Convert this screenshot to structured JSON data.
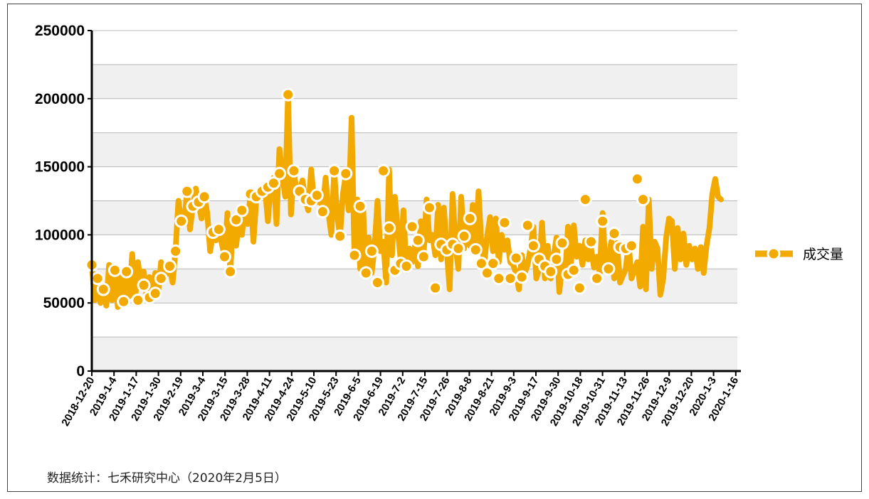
{
  "source_note": "数据统计：七禾研究中心（2020年2月5日）",
  "chart_data": {
    "type": "line",
    "title": "",
    "xlabel": "",
    "ylabel": "",
    "ylim": [
      0,
      250000
    ],
    "yticks": [
      0,
      50000,
      100000,
      150000,
      200000,
      250000
    ],
    "grid": true,
    "legend_position": "right",
    "series_color": "#f2a900",
    "xtick_labels": [
      "2018-12-20",
      "2019-1-4",
      "2019-1-17",
      "2019-1-30",
      "2019-2-19",
      "2019-3-4",
      "2019-3-15",
      "2019-3-28",
      "2019-4-11",
      "2019-4-24",
      "2019-5-10",
      "2019-5-23",
      "2019-6-5",
      "2019-6-19",
      "2019-7-2",
      "2019-7-15",
      "2019-7-26",
      "2019-8-8",
      "2019-8-21",
      "2019-9-3",
      "2019-9-17",
      "2019-9-30",
      "2019-10-18",
      "2019-10-31",
      "2019-11-13",
      "2019-11-26",
      "2019-12-9",
      "2019-12-20",
      "2020-1-3",
      "2020-1-16"
    ],
    "series": [
      {
        "name": "成交量",
        "values": [
          78000,
          52000,
          68000,
          50000,
          60000,
          48000,
          78000,
          52000,
          74000,
          47000,
          71000,
          51000,
          73000,
          55000,
          86000,
          52000,
          80000,
          63000,
          73000,
          54000,
          69000,
          57000,
          72000,
          58000,
          80000,
          68000,
          72000,
          77000,
          65000,
          88000,
          125000,
          110000,
          108000,
          132000,
          104000,
          121000,
          134000,
          124000,
          112000,
          128000,
          116000,
          88000,
          102000,
          96000,
          104000,
          94000,
          84000,
          116000,
          73000,
          112000,
          92000,
          110000,
          100000,
          120000,
          108000,
          130000,
          95000,
          126000,
          128000,
          132000,
          135000,
          110000,
          138000,
          142000,
          108000,
          163000,
          145000,
          128000,
          203000,
          115000,
          147000,
          130000,
          132000,
          140000,
          126000,
          118000,
          148000,
          125000,
          124000,
          130000,
          118000,
          142000,
          116000,
          100000,
          147000,
          115000,
          99000,
          130000,
          144000,
          118000,
          186000,
          85000,
          126000,
          75000,
          120000,
          70000,
          98000,
          72000,
          92000,
          125000,
          88000,
          95000,
          65000,
          148000,
          85000,
          128000,
          104000,
          82000,
          118000,
          74000,
          90000,
          80000,
          92000,
          77000,
          110000,
          86000,
          126000,
          96000,
          100000,
          85000,
          122000,
          82000,
          120000,
          88000,
          60000,
          130000,
          93000,
          75000,
          128000,
          90000,
          110000,
          92000,
          122000,
          90000,
          132000,
          92000,
          80000,
          99000,
          113000,
          88000,
          112000,
          80000,
          100000,
          89000,
          96000,
          80000,
          78000,
          72000,
          60000,
          85000,
          72000,
          78000,
          90000,
          106000,
          68000,
          75000,
          109000,
          68000,
          92000,
          68000,
          84000,
          98000,
          58000,
          80000,
          69000,
          106000,
          78000,
          107000,
          84000,
          92000,
          78000,
          96000,
          82000,
          90000,
          76000,
          84000,
          72000,
          116000,
          75000,
          82000,
          95000,
          68000,
          94000,
          65000,
          70000,
          75000,
          94000,
          68000,
          74000,
          80000,
          62000,
          106000,
          60000,
          126000,
          75000,
          95000,
          90000,
          56000,
          68000,
          98000,
          112000,
          110000,
          75000,
          105000,
          82000,
          101000,
          78000,
          92000,
          82000,
          90000,
          75000,
          91000,
          72000,
          92000,
          105000,
          130000,
          141000,
          128000,
          126000
        ]
      }
    ],
    "markers": [
      [
        0,
        78000
      ],
      [
        2,
        68000
      ],
      [
        4,
        60000
      ],
      [
        8,
        74000
      ],
      [
        11,
        51000
      ],
      [
        12,
        73000
      ],
      [
        16,
        52000
      ],
      [
        18,
        63000
      ],
      [
        20,
        54000
      ],
      [
        22,
        57000
      ],
      [
        24,
        68000
      ],
      [
        27,
        77000
      ],
      [
        29,
        88000
      ],
      [
        31,
        110000
      ],
      [
        33,
        132000
      ],
      [
        35,
        121000
      ],
      [
        37,
        124000
      ],
      [
        39,
        128000
      ],
      [
        42,
        102000
      ],
      [
        44,
        104000
      ],
      [
        46,
        84000
      ],
      [
        48,
        73000
      ],
      [
        50,
        111000
      ],
      [
        52,
        118000
      ],
      [
        55,
        130000
      ],
      [
        57,
        128000
      ],
      [
        59,
        132000
      ],
      [
        61,
        135000
      ],
      [
        63,
        138000
      ],
      [
        65,
        145000
      ],
      [
        68,
        203000
      ],
      [
        70,
        147000
      ],
      [
        72,
        132000
      ],
      [
        74,
        126000
      ],
      [
        76,
        125000
      ],
      [
        78,
        129000
      ],
      [
        80,
        117000
      ],
      [
        84,
        147000
      ],
      [
        86,
        99000
      ],
      [
        88,
        145000
      ],
      [
        91,
        85000
      ],
      [
        93,
        121000
      ],
      [
        95,
        72000
      ],
      [
        97,
        88000
      ],
      [
        99,
        65000
      ],
      [
        101,
        147000
      ],
      [
        103,
        105000
      ],
      [
        105,
        74000
      ],
      [
        107,
        79000
      ],
      [
        109,
        77000
      ],
      [
        111,
        106000
      ],
      [
        113,
        96000
      ],
      [
        115,
        84000
      ],
      [
        117,
        120000
      ],
      [
        119,
        61000
      ],
      [
        121,
        93000
      ],
      [
        123,
        89000
      ],
      [
        125,
        93000
      ],
      [
        127,
        90000
      ],
      [
        129,
        99000
      ],
      [
        131,
        112000
      ],
      [
        133,
        89000
      ],
      [
        135,
        79000
      ],
      [
        137,
        72000
      ],
      [
        139,
        79000
      ],
      [
        141,
        68000
      ],
      [
        143,
        109000
      ],
      [
        145,
        68000
      ],
      [
        147,
        83000
      ],
      [
        149,
        69000
      ],
      [
        151,
        107000
      ],
      [
        153,
        92000
      ],
      [
        155,
        82000
      ],
      [
        157,
        77000
      ],
      [
        159,
        73000
      ],
      [
        161,
        82000
      ],
      [
        163,
        94000
      ],
      [
        165,
        71000
      ],
      [
        167,
        74000
      ],
      [
        169,
        61000
      ],
      [
        171,
        126000
      ],
      [
        173,
        95000
      ],
      [
        175,
        68000
      ],
      [
        177,
        110000
      ],
      [
        179,
        75000
      ],
      [
        181,
        101000
      ],
      [
        183,
        91000
      ],
      [
        185,
        90000
      ],
      [
        187,
        92000
      ],
      [
        189,
        141000
      ],
      [
        191,
        126000
      ]
    ]
  }
}
